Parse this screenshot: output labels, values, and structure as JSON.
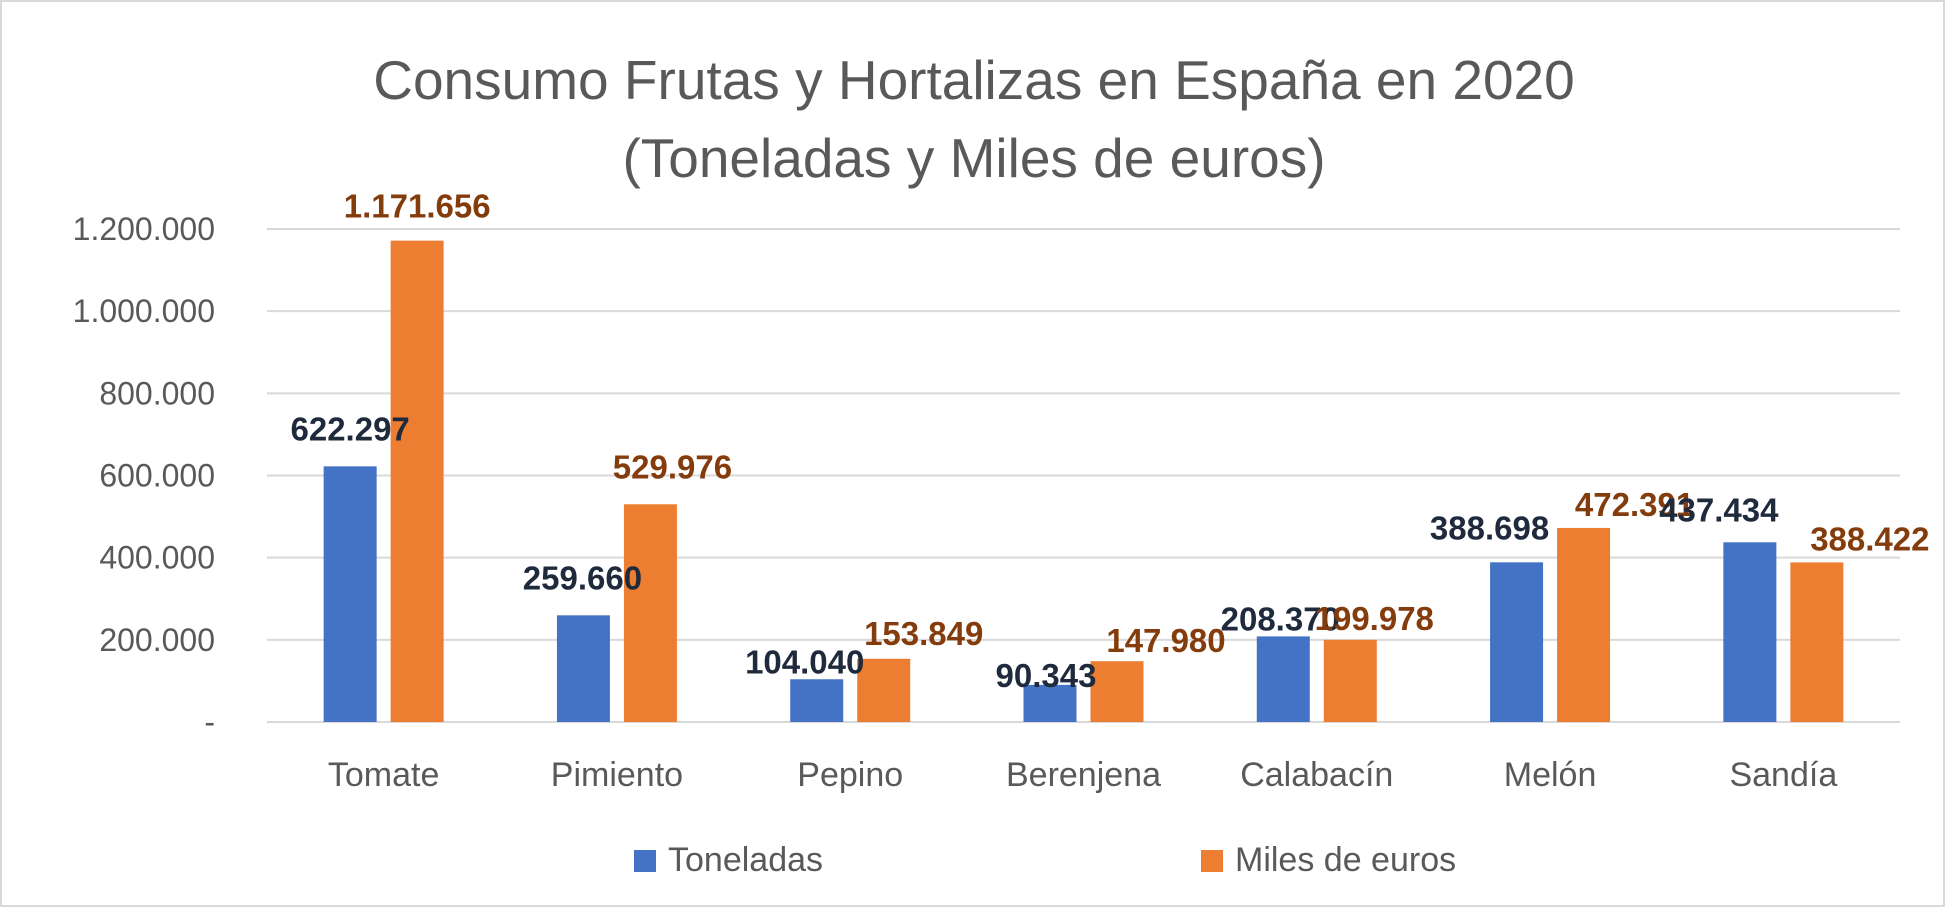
{
  "chart_data": {
    "type": "bar",
    "title": [
      "Consumo Frutas y Hortalizas en España en 2020",
      "(Toneladas y Miles de euros)"
    ],
    "categories": [
      "Tomate",
      "Pimiento",
      "Pepino",
      "Berenjena",
      "Calabacín",
      "Melón",
      "Sandía"
    ],
    "series": [
      {
        "name": "Toneladas",
        "color": "#4472c4",
        "label_color": "#1f2a3c",
        "values": [
          622297,
          259660,
          104040,
          90343,
          208370,
          388698,
          437434
        ],
        "labels": [
          "622.297",
          "259.660",
          "104.040",
          "90.343",
          "208.370",
          "388.698",
          "437.434"
        ]
      },
      {
        "name": "Miles de euros",
        "color": "#ed7d31",
        "label_color": "#843c0c",
        "values": [
          1171656,
          529976,
          153849,
          147980,
          199978,
          472391,
          388422
        ],
        "labels": [
          "1.171.656",
          "529.976",
          "153.849",
          "147.980",
          "199.978",
          "472.391",
          "388.422"
        ]
      }
    ],
    "ylim": [
      0,
      1200000
    ],
    "yticks": [
      0,
      200000,
      400000,
      600000,
      800000,
      1000000,
      1200000
    ],
    "ytick_labels": [
      "-",
      "200.000",
      "400.000",
      "600.000",
      "800.000",
      "1.000.000",
      "1.200.000"
    ],
    "xlabel": "",
    "ylabel": "",
    "grid": true,
    "legend": "bottom",
    "colors": {
      "grid": "#d9d9d9",
      "text": "#595959",
      "background": "#ffffff"
    }
  }
}
